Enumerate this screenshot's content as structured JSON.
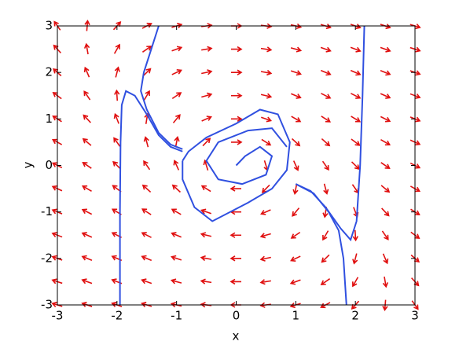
{
  "chart_data": {
    "type": "quiver",
    "xlabel": "x",
    "ylabel": "y",
    "xlim": [
      -3,
      3
    ],
    "ylim": [
      -3,
      3
    ],
    "xticks": [
      -3,
      -2,
      -1,
      0,
      1,
      2,
      3
    ],
    "yticks": [
      -3,
      -2,
      -1,
      0,
      1,
      2,
      3
    ],
    "arrow_color": "#e01010",
    "field": {
      "x": [
        -3,
        -2.5,
        -2,
        -1.5,
        -1,
        -0.5,
        0,
        0.5,
        1,
        1.5,
        2,
        2.5,
        3
      ],
      "y": [
        -3,
        -2.5,
        -2,
        -1.5,
        -1,
        -0.5,
        0,
        0.5,
        1,
        1.5,
        2,
        2.5,
        3
      ],
      "u": [
        [
          -7.65,
          -5.84,
          -4.6,
          -3.81,
          -3.35,
          -3.12,
          -3,
          -2.88,
          -2.65,
          -2.19,
          -1.4,
          -0.16,
          1.65
        ],
        [
          -7.15,
          -5.34,
          -4.1,
          -3.31,
          -2.85,
          -2.62,
          -2.5,
          -2.38,
          -2.15,
          -1.69,
          -0.9,
          0.34,
          2.15
        ],
        [
          -6.65,
          -4.84,
          -3.6,
          -2.81,
          -2.35,
          -2.12,
          -2,
          -1.88,
          -1.65,
          -1.19,
          -0.4,
          0.84,
          2.65
        ],
        [
          -6.15,
          -4.34,
          -3.1,
          -2.31,
          -1.85,
          -1.62,
          -1.5,
          -1.38,
          -1.15,
          -0.69,
          0.1,
          1.34,
          3.15
        ],
        [
          -5.65,
          -3.84,
          -2.6,
          -1.81,
          -1.35,
          -1.12,
          -1,
          -0.88,
          -0.65,
          -0.19,
          0.6,
          1.84,
          3.65
        ],
        [
          -5.15,
          -3.34,
          -2.1,
          -1.31,
          -0.85,
          -0.62,
          -0.5,
          -0.38,
          -0.15,
          0.31,
          1.1,
          2.34,
          4.15
        ],
        [
          -4.65,
          -2.84,
          -1.6,
          -0.81,
          -0.35,
          -0.12,
          0,
          0.12,
          0.35,
          0.81,
          1.6,
          2.84,
          4.65
        ],
        [
          -4.15,
          -2.34,
          -1.1,
          -0.31,
          0.15,
          0.38,
          0.5,
          0.62,
          0.85,
          1.31,
          2.1,
          3.34,
          5.15
        ],
        [
          -3.65,
          -1.84,
          -0.6,
          0.19,
          0.65,
          0.88,
          1,
          1.12,
          1.35,
          1.81,
          2.6,
          3.84,
          5.65
        ],
        [
          -3.15,
          -1.34,
          -0.1,
          0.69,
          1.15,
          1.38,
          1.5,
          1.62,
          1.85,
          2.31,
          3.1,
          4.34,
          6.15
        ],
        [
          -2.65,
          -0.84,
          0.4,
          1.19,
          1.65,
          1.88,
          2,
          2.12,
          2.35,
          2.81,
          3.6,
          4.84,
          6.65
        ],
        [
          -2.15,
          -0.34,
          0.9,
          1.69,
          2.15,
          2.38,
          2.5,
          2.62,
          2.85,
          3.31,
          4.1,
          5.34,
          7.15
        ],
        [
          -1.65,
          0.16,
          1.4,
          2.19,
          2.65,
          2.88,
          3,
          3.12,
          3.35,
          3.81,
          4.6,
          5.84,
          7.65
        ]
      ],
      "v": [
        [
          3,
          2.5,
          2,
          1.5,
          1,
          0.5,
          0,
          -0.5,
          -1,
          -1.5,
          -2,
          -2.5,
          -3
        ],
        [
          3,
          2.5,
          2,
          1.5,
          1,
          0.5,
          0,
          -0.5,
          -1,
          -1.5,
          -2,
          -2.5,
          -3
        ],
        [
          3,
          2.5,
          2,
          1.5,
          1,
          0.5,
          0,
          -0.5,
          -1,
          -1.5,
          -2,
          -2.5,
          -3
        ],
        [
          3,
          2.5,
          2,
          1.5,
          1,
          0.5,
          0,
          -0.5,
          -1,
          -1.5,
          -2,
          -2.5,
          -3
        ],
        [
          3,
          2.5,
          2,
          1.5,
          1,
          0.5,
          0,
          -0.5,
          -1,
          -1.5,
          -2,
          -2.5,
          -3
        ],
        [
          3,
          2.5,
          2,
          1.5,
          1,
          0.5,
          0,
          -0.5,
          -1,
          -1.5,
          -2,
          -2.5,
          -3
        ],
        [
          3,
          2.5,
          2,
          1.5,
          1,
          0.5,
          0,
          -0.5,
          -1,
          -1.5,
          -2,
          -2.5,
          -3
        ],
        [
          3,
          2.5,
          2,
          1.5,
          1,
          0.5,
          0,
          -0.5,
          -1,
          -1.5,
          -2,
          -2.5,
          -3
        ],
        [
          3,
          2.5,
          2,
          1.5,
          1,
          0.5,
          0,
          -0.5,
          -1,
          -1.5,
          -2,
          -2.5,
          -3
        ],
        [
          3,
          2.5,
          2,
          1.5,
          1,
          0.5,
          0,
          -0.5,
          -1,
          -1.5,
          -2,
          -2.5,
          -3
        ],
        [
          3,
          2.5,
          2,
          1.5,
          1,
          0.5,
          0,
          -0.5,
          -1,
          -1.5,
          -2,
          -2.5,
          -3
        ],
        [
          3,
          2.5,
          2,
          1.5,
          1,
          0.5,
          0,
          -0.5,
          -1,
          -1.5,
          -2,
          -2.5,
          -3
        ],
        [
          3,
          2.5,
          2,
          1.5,
          1,
          0.5,
          0,
          -0.5,
          -1,
          -1.5,
          -2,
          -2.5,
          -3
        ]
      ]
    },
    "trajectory_color": "#3050e0",
    "trajectories": [
      {
        "x": [
          -1.95,
          -1.95,
          -1.94,
          -1.92,
          -1.85,
          -1.7,
          -1.5,
          -1.3,
          -1.1,
          -0.9
        ],
        "y": [
          -3,
          -1,
          0.5,
          1.3,
          1.6,
          1.5,
          1.1,
          0.65,
          0.4,
          0.3
        ]
      },
      {
        "x": [
          -1.3,
          -1.4,
          -1.55,
          -1.6,
          -1.5,
          -1.3,
          -1.1,
          -0.9
        ],
        "y": [
          3,
          2.6,
          2,
          1.6,
          1.2,
          0.7,
          0.45,
          0.35
        ]
      },
      {
        "x": [
          2.15,
          2.12,
          2.08,
          2.02,
          1.92,
          1.75,
          1.5,
          1.25,
          1.0
        ],
        "y": [
          3,
          1.5,
          0,
          -1.2,
          -1.6,
          -1.35,
          -0.9,
          -0.55,
          -0.4
        ]
      },
      {
        "x": [
          1.85,
          1.8,
          1.72,
          1.55,
          1.3,
          1.0
        ],
        "y": [
          -3,
          -2,
          -1.4,
          -1.0,
          -0.6,
          -0.4
        ]
      },
      {
        "x": [
          -0.9,
          -0.8,
          -0.5,
          0,
          0.4,
          0.7,
          0.9,
          0.85,
          0.6,
          0.2,
          -0.4,
          -0.7,
          -0.9,
          -0.9
        ],
        "y": [
          0.1,
          0.3,
          0.6,
          0.9,
          1.2,
          1.1,
          0.5,
          -0.1,
          -0.5,
          -0.8,
          -1.2,
          -0.9,
          -0.3,
          0.1
        ]
      },
      {
        "x": [
          0,
          0.15,
          0.4,
          0.6,
          0.5,
          0.1,
          -0.3,
          -0.5,
          -0.3,
          0.2,
          0.6,
          0.85
        ],
        "y": [
          0,
          0.2,
          0.4,
          0.2,
          -0.2,
          -0.4,
          -0.3,
          0.1,
          0.5,
          0.75,
          0.8,
          0.4
        ]
      }
    ]
  }
}
